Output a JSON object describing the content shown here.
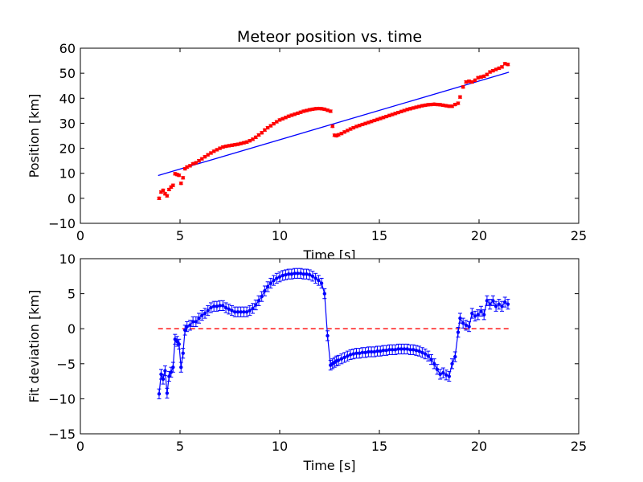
{
  "chart_data": [
    {
      "type": "scatter",
      "title": "Meteor position vs. time",
      "xlabel": "Time [s]",
      "ylabel": "Position [km]",
      "xlim": [
        0,
        25
      ],
      "ylim": [
        -10,
        60
      ],
      "xticks": [
        "0",
        "5",
        "10",
        "15",
        "20",
        "25"
      ],
      "yticks": [
        "−10",
        "0",
        "10",
        "20",
        "30",
        "40",
        "50",
        "60"
      ],
      "grid": false,
      "colors": {
        "points": "#ff0000",
        "fit": "#0000ff"
      },
      "series": [
        {
          "kind": "points-with-errorbars",
          "error_km": 0.5,
          "x": [
            3.95,
            4.05,
            4.15,
            4.25,
            4.35,
            4.45,
            4.55,
            4.65,
            4.75,
            4.85,
            4.95,
            5.05,
            5.15,
            5.25,
            5.35,
            5.5,
            5.65,
            5.8,
            5.95,
            6.1,
            6.25,
            6.4,
            6.55,
            6.7,
            6.85,
            7.0,
            7.15,
            7.3,
            7.45,
            7.6,
            7.75,
            7.9,
            8.05,
            8.2,
            8.35,
            8.5,
            8.65,
            8.8,
            8.95,
            9.1,
            9.25,
            9.4,
            9.55,
            9.7,
            9.85,
            10.0,
            10.15,
            10.3,
            10.45,
            10.6,
            10.75,
            10.9,
            11.05,
            11.2,
            11.35,
            11.5,
            11.65,
            11.8,
            11.95,
            12.1,
            12.25,
            12.4,
            12.55,
            12.65,
            12.75,
            12.85,
            12.95,
            13.1,
            13.25,
            13.4,
            13.55,
            13.7,
            13.85,
            14.0,
            14.15,
            14.3,
            14.45,
            14.6,
            14.75,
            14.9,
            15.05,
            15.2,
            15.35,
            15.5,
            15.65,
            15.8,
            15.95,
            16.1,
            16.25,
            16.4,
            16.55,
            16.7,
            16.85,
            17.0,
            17.15,
            17.3,
            17.45,
            17.6,
            17.75,
            17.9,
            18.05,
            18.2,
            18.35,
            18.5,
            18.65,
            18.8,
            18.95,
            19.05,
            19.2,
            19.35,
            19.5,
            19.65,
            19.8,
            19.95,
            20.1,
            20.25,
            20.4,
            20.55,
            20.7,
            20.85,
            21.0,
            21.15,
            21.3,
            21.45
          ],
          "y": [
            0.0,
            2.5,
            3.2,
            1.8,
            1.0,
            3.5,
            4.5,
            5.2,
            9.8,
            9.5,
            9.2,
            6.0,
            8.2,
            11.8,
            12.5,
            13.0,
            13.8,
            14.2,
            15.0,
            15.8,
            16.6,
            17.4,
            18.1,
            18.8,
            19.4,
            20.0,
            20.5,
            20.8,
            21.0,
            21.2,
            21.4,
            21.6,
            21.9,
            22.2,
            22.5,
            23.0,
            23.6,
            24.4,
            25.3,
            26.2,
            27.3,
            28.2,
            29.0,
            29.8,
            30.6,
            31.3,
            31.8,
            32.3,
            32.8,
            33.2,
            33.6,
            34.0,
            34.4,
            34.8,
            35.1,
            35.4,
            35.6,
            35.8,
            35.9,
            35.8,
            35.6,
            35.2,
            34.8,
            28.8,
            25.2,
            25.0,
            25.4,
            25.9,
            26.5,
            27.1,
            27.7,
            28.2,
            28.7,
            29.1,
            29.5,
            29.9,
            30.3,
            30.7,
            31.1,
            31.5,
            31.9,
            32.3,
            32.7,
            33.1,
            33.5,
            33.9,
            34.3,
            34.7,
            35.1,
            35.5,
            35.8,
            36.1,
            36.4,
            36.7,
            37.0,
            37.2,
            37.4,
            37.5,
            37.6,
            37.5,
            37.4,
            37.2,
            37.0,
            36.8,
            36.8,
            37.5,
            38.0,
            40.5,
            44.5,
            46.5,
            46.8,
            46.5,
            47.2,
            48.2,
            48.5,
            48.8,
            49.5,
            50.5,
            51.0,
            51.5,
            52.0,
            52.5,
            53.8,
            53.5
          ]
        },
        {
          "kind": "linear-fit-line",
          "x": [
            3.9,
            21.5
          ],
          "y": [
            9.1,
            50.4
          ]
        }
      ]
    },
    {
      "type": "line",
      "title": "",
      "xlabel": "Time [s]",
      "ylabel": "Fit deviation [km]",
      "xlim": [
        0,
        25
      ],
      "ylim": [
        -15,
        10
      ],
      "xticks": [
        "0",
        "5",
        "10",
        "15",
        "20",
        "25"
      ],
      "yticks": [
        "−15",
        "−10",
        "−5",
        "0",
        "5",
        "10"
      ],
      "grid": false,
      "colors": {
        "deviation": "#0000ff",
        "zero_line": "#ff0000"
      },
      "series": [
        {
          "kind": "line-with-errorbars",
          "error_km": 0.7,
          "x": [
            3.95,
            4.05,
            4.15,
            4.25,
            4.35,
            4.45,
            4.55,
            4.65,
            4.75,
            4.85,
            4.95,
            5.05,
            5.15,
            5.25,
            5.35,
            5.5,
            5.65,
            5.8,
            5.95,
            6.1,
            6.25,
            6.4,
            6.55,
            6.7,
            6.85,
            7.0,
            7.15,
            7.3,
            7.45,
            7.6,
            7.75,
            7.9,
            8.05,
            8.2,
            8.35,
            8.5,
            8.65,
            8.8,
            8.95,
            9.1,
            9.25,
            9.4,
            9.55,
            9.7,
            9.85,
            10.0,
            10.15,
            10.3,
            10.45,
            10.6,
            10.75,
            10.9,
            11.05,
            11.2,
            11.35,
            11.5,
            11.65,
            11.8,
            11.95,
            12.1,
            12.25,
            12.4,
            12.55,
            12.65,
            12.75,
            12.85,
            12.95,
            13.1,
            13.25,
            13.4,
            13.55,
            13.7,
            13.85,
            14.0,
            14.15,
            14.3,
            14.45,
            14.6,
            14.75,
            14.9,
            15.05,
            15.2,
            15.35,
            15.5,
            15.65,
            15.8,
            15.95,
            16.1,
            16.25,
            16.4,
            16.55,
            16.7,
            16.85,
            17.0,
            17.15,
            17.3,
            17.45,
            17.6,
            17.75,
            17.9,
            18.05,
            18.2,
            18.35,
            18.5,
            18.65,
            18.8,
            18.95,
            19.05,
            19.2,
            19.35,
            19.5,
            19.65,
            19.8,
            19.95,
            20.1,
            20.25,
            20.4,
            20.55,
            20.7,
            20.85,
            21.0,
            21.15,
            21.3,
            21.45
          ],
          "y": [
            -9.3,
            -6.5,
            -7.2,
            -6.0,
            -9.2,
            -6.8,
            -6.2,
            -5.5,
            -1.5,
            -1.8,
            -2.2,
            -5.5,
            -3.5,
            -0.2,
            0.3,
            0.5,
            1.0,
            1.0,
            1.5,
            1.9,
            2.2,
            2.6,
            3.0,
            3.2,
            3.2,
            3.3,
            3.3,
            3.0,
            2.8,
            2.6,
            2.4,
            2.4,
            2.4,
            2.4,
            2.4,
            2.6,
            2.9,
            3.4,
            4.0,
            4.6,
            5.4,
            6.0,
            6.5,
            6.9,
            7.2,
            7.4,
            7.6,
            7.7,
            7.8,
            7.8,
            7.9,
            7.9,
            7.9,
            7.8,
            7.8,
            7.7,
            7.5,
            7.2,
            6.9,
            6.5,
            5.0,
            -1.0,
            -5.2,
            -5.0,
            -4.8,
            -4.6,
            -4.5,
            -4.3,
            -4.1,
            -3.9,
            -3.7,
            -3.6,
            -3.5,
            -3.5,
            -3.4,
            -3.4,
            -3.3,
            -3.3,
            -3.3,
            -3.2,
            -3.2,
            -3.1,
            -3.1,
            -3.0,
            -3.0,
            -3.0,
            -2.9,
            -2.9,
            -2.9,
            -2.9,
            -3.0,
            -3.0,
            -3.1,
            -3.2,
            -3.4,
            -3.6,
            -3.9,
            -4.4,
            -5.0,
            -5.8,
            -6.5,
            -6.3,
            -6.6,
            -6.8,
            -5.0,
            -4.0,
            -0.5,
            1.5,
            0.8,
            0.5,
            0.3,
            2.2,
            1.8,
            2.0,
            2.5,
            2.0,
            4.0,
            3.5,
            4.0,
            3.2,
            3.5,
            3.2,
            3.8,
            3.5
          ]
        },
        {
          "kind": "dashed-zero-line",
          "x": [
            3.9,
            21.5
          ],
          "y": [
            0,
            0
          ]
        }
      ]
    }
  ]
}
